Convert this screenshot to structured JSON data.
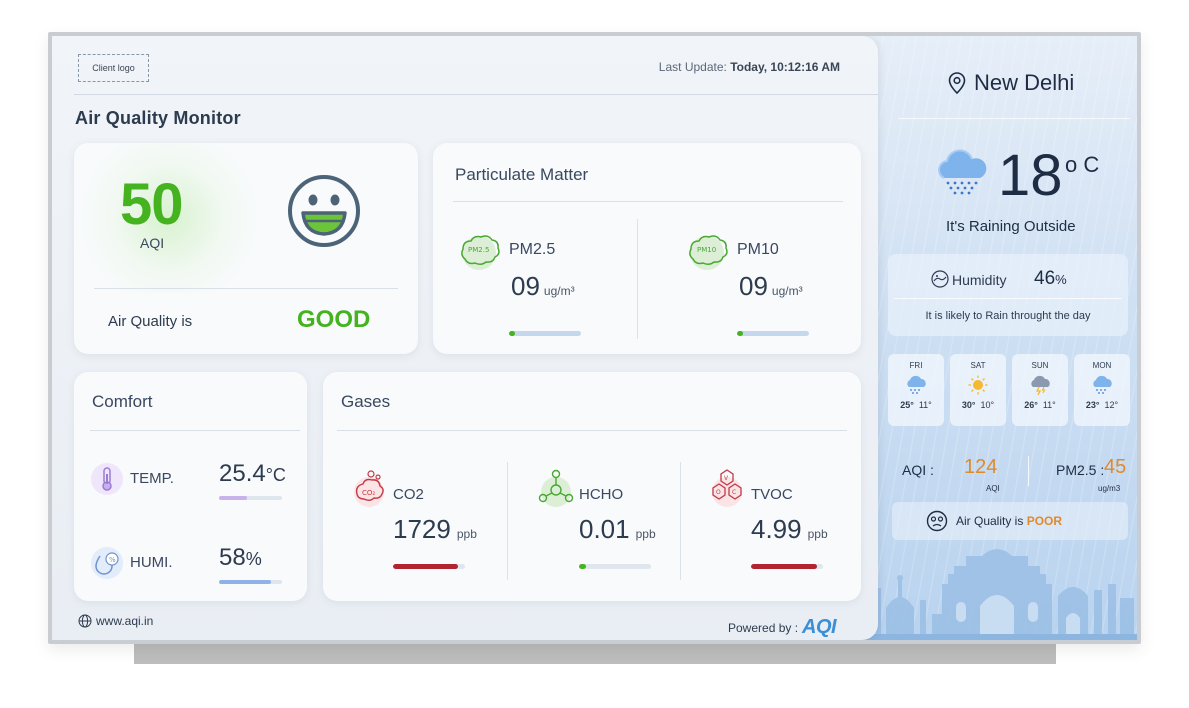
{
  "header": {
    "logo_text": "Client logo",
    "last_update_label": "Last Update:",
    "last_update_value": "Today, 10:12:16 AM",
    "title": "Air Quality Monitor"
  },
  "aqi": {
    "value": "50",
    "label": "AQI",
    "status_label": "Air Quality is",
    "status_value": "GOOD",
    "status_color": "#45b21f"
  },
  "particulate": {
    "title": "Particulate Matter",
    "items": [
      {
        "label": "PM2.5",
        "value": "09",
        "unit": "ug/m³",
        "icon": "pm25-icon",
        "level": 0.08
      },
      {
        "label": "PM10",
        "value": "09",
        "unit": "ug/m³",
        "icon": "pm10-icon",
        "level": 0.08
      }
    ]
  },
  "comfort": {
    "title": "Comfort",
    "items": [
      {
        "label": "TEMP.",
        "value": "25.4",
        "unit": "°C",
        "icon": "thermometer-icon",
        "level": 0.45,
        "color": "#c7b2ec"
      },
      {
        "label": "HUMI.",
        "value": "58",
        "unit": "%",
        "icon": "humidity-icon",
        "level": 0.82,
        "color": "#8fb3e8"
      }
    ]
  },
  "gases": {
    "title": "Gases",
    "items": [
      {
        "label": "CO2",
        "value": "1729",
        "unit": "ppb",
        "icon": "co2-icon",
        "level": 0.9,
        "color": "#b32431"
      },
      {
        "label": "HCHO",
        "value": "0.01",
        "unit": "ppb",
        "icon": "hcho-icon",
        "level": 0.1,
        "color": "#45b21f"
      },
      {
        "label": "TVOC",
        "value": "4.99",
        "unit": "ppb",
        "icon": "tvoc-icon",
        "level": 0.92,
        "color": "#b32431"
      }
    ]
  },
  "footer": {
    "site": "www.aqi.in",
    "powered_by": "Powered by :",
    "brand": "AQI"
  },
  "weather": {
    "city": "New Delhi",
    "temp": "18",
    "temp_unit": "o C",
    "condition": "It's Raining Outside",
    "humidity_label": "Humidity",
    "humidity_value": "46",
    "humidity_unit": "%",
    "note": "It is likely to Rain throught the day",
    "forecast": [
      {
        "day": "FRI",
        "high": "25°",
        "low": "11°",
        "icon": "rain-cloud-icon"
      },
      {
        "day": "SAT",
        "high": "30°",
        "low": "10°",
        "icon": "sun-icon"
      },
      {
        "day": "SUN",
        "high": "26°",
        "low": "11°",
        "icon": "storm-cloud-icon"
      },
      {
        "day": "MON",
        "high": "23°",
        "low": "12°",
        "icon": "rain-cloud-icon"
      }
    ],
    "aqi_label": "AQI :",
    "aqi_value": "124",
    "aqi_sub": "AQI",
    "pm_label": "PM2.5 :",
    "pm_value": "45",
    "pm_sub": "ug/m3",
    "quality_prefix": "Air Quality is",
    "quality_value": "POOR",
    "accent": "#e08a2c"
  }
}
